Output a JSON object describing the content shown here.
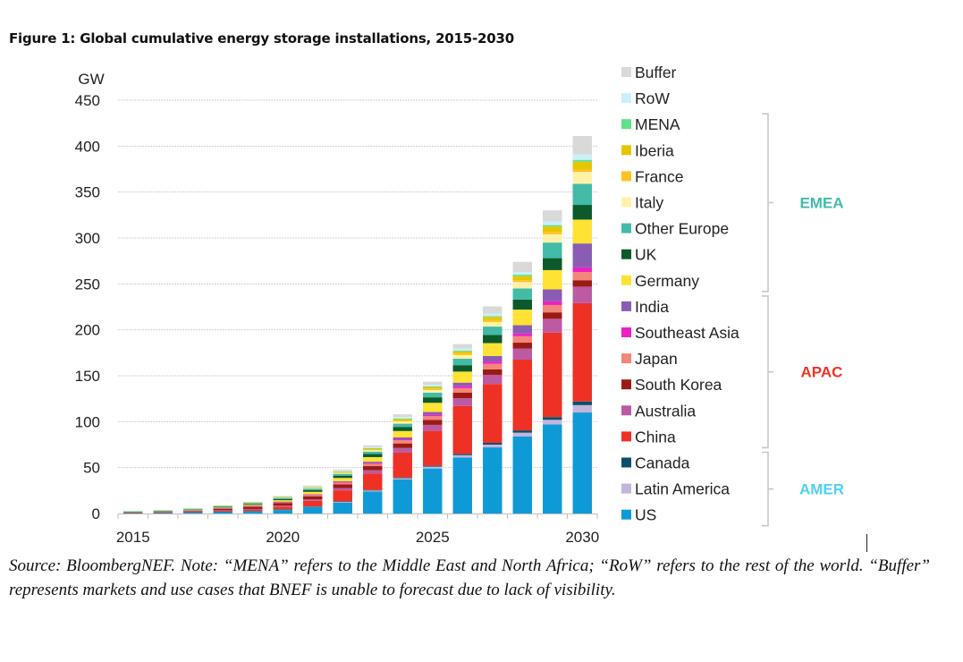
{
  "figure": {
    "title": "Figure 1: Global cumulative energy storage installations, 2015-2030",
    "source_note": "Source: BloombergNEF. Note: “MENA” refers to the Middle East and North Africa; “RoW” refers to the rest of the world. “Buffer” represents markets and use cases that BNEF is unable to forecast due to lack of visibility."
  },
  "chart_data": {
    "type": "bar",
    "stacked": true,
    "title": "Global cumulative energy storage installations, 2015-2030",
    "xlabel": "",
    "ylabel": "GW",
    "ylim": [
      0,
      450
    ],
    "yticks": [
      0,
      50,
      100,
      150,
      200,
      250,
      300,
      350,
      400,
      450
    ],
    "xtick_labels": [
      "2015",
      "2020",
      "2025",
      "2030"
    ],
    "grid": true,
    "legend_position": "right",
    "categories": [
      "2015",
      "2016",
      "2017",
      "2018",
      "2019",
      "2020",
      "2021",
      "2022",
      "2023",
      "2024",
      "2025",
      "2026",
      "2027",
      "2028",
      "2029",
      "2030"
    ],
    "series": [
      {
        "name": "US",
        "color": "#0e9ad7",
        "values": [
          0.5,
          0.8,
          1.2,
          1.8,
          2.5,
          4,
          7,
          12,
          24,
          37,
          49,
          61,
          72,
          84,
          97,
          110
        ]
      },
      {
        "name": "Latin America",
        "color": "#c4b5dd",
        "values": [
          0.1,
          0.1,
          0.1,
          0.2,
          0.2,
          0.3,
          0.5,
          0.8,
          1,
          1.5,
          2,
          2.5,
          3,
          4,
          5,
          8
        ]
      },
      {
        "name": "Canada",
        "color": "#0b4f6c",
        "values": [
          0.1,
          0.1,
          0.1,
          0.1,
          0.1,
          0.2,
          0.3,
          0.4,
          0.6,
          0.8,
          1,
          1.5,
          2,
          2.5,
          3,
          4
        ]
      },
      {
        "name": "China",
        "color": "#ee3124",
        "values": [
          0.2,
          0.3,
          0.5,
          1,
          1.5,
          3,
          6,
          12,
          18,
          27,
          38,
          52,
          64,
          77,
          92,
          107
        ]
      },
      {
        "name": "Australia",
        "color": "#bc5aa3",
        "values": [
          0.1,
          0.1,
          0.2,
          0.4,
          0.6,
          1,
          1.5,
          2.5,
          3.5,
          5,
          6.5,
          8.5,
          10,
          12,
          15,
          18
        ]
      },
      {
        "name": "South Korea",
        "color": "#9b1b14",
        "values": [
          0.2,
          0.4,
          0.7,
          1.5,
          2.5,
          3,
          3.5,
          4,
          4.5,
          5,
          5.5,
          6,
          6,
          6.5,
          7,
          7
        ]
      },
      {
        "name": "Japan",
        "color": "#f4857a",
        "values": [
          0.2,
          0.3,
          0.4,
          0.6,
          0.8,
          1,
          1.5,
          2,
          2.5,
          3.5,
          4,
          5,
          6,
          7,
          8,
          9
        ]
      },
      {
        "name": "Southeast Asia",
        "color": "#ee1fc4",
        "values": [
          0,
          0,
          0,
          0.1,
          0.1,
          0.2,
          0.3,
          0.5,
          0.8,
          1,
          1.5,
          2,
          2.5,
          3,
          4,
          5
        ]
      },
      {
        "name": "India",
        "color": "#8a5cb4",
        "values": [
          0,
          0,
          0.1,
          0.1,
          0.2,
          0.3,
          0.5,
          1,
          1.5,
          2,
          3,
          4,
          6,
          9,
          13,
          26
        ]
      },
      {
        "name": "Germany",
        "color": "#ffe234",
        "values": [
          0.1,
          0.2,
          0.4,
          0.7,
          1,
          1.5,
          2.5,
          3.5,
          5,
          7,
          10,
          12,
          14,
          17,
          21,
          26
        ]
      },
      {
        "name": "UK",
        "color": "#0c5a2b",
        "values": [
          0.2,
          0.3,
          0.5,
          0.7,
          1,
          1.3,
          2,
          2.5,
          3.5,
          4.5,
          6,
          7,
          9,
          11,
          13,
          16
        ]
      },
      {
        "name": "Other Europe",
        "color": "#42bba9",
        "values": [
          0.9,
          0.9,
          1,
          1,
          1,
          1.2,
          1.5,
          2,
          2.5,
          3.5,
          5,
          7,
          9,
          12,
          17,
          23
        ]
      },
      {
        "name": "Italy",
        "color": "#fff2a8",
        "values": [
          0.1,
          0.1,
          0.1,
          0.2,
          0.2,
          0.4,
          0.6,
          1,
          1.5,
          2.5,
          3,
          4,
          5,
          7,
          9,
          13
        ]
      },
      {
        "name": "France",
        "color": "#ffc222",
        "values": [
          0.1,
          0.1,
          0.1,
          0.2,
          0.2,
          0.3,
          0.4,
          0.5,
          0.7,
          1,
          1.2,
          1.5,
          2,
          2,
          2.5,
          3
        ]
      },
      {
        "name": "Iberia",
        "color": "#e6c600",
        "values": [
          0,
          0,
          0.1,
          0.1,
          0.2,
          0.3,
          0.5,
          0.8,
          1,
          1.5,
          2,
          2.5,
          3.5,
          4.5,
          6,
          8
        ]
      },
      {
        "name": "MENA",
        "color": "#5fe08a",
        "values": [
          0.1,
          0.1,
          0.2,
          0.2,
          0.3,
          0.3,
          0.4,
          0.5,
          0.6,
          0.7,
          0.8,
          1,
          1,
          1.5,
          1.5,
          2
        ]
      },
      {
        "name": "RoW",
        "color": "#c9f0fb",
        "values": [
          0.1,
          0.1,
          0.1,
          0.2,
          0.2,
          0.4,
          0.5,
          0.7,
          1,
          1.5,
          1.5,
          2,
          2.5,
          3,
          4,
          6
        ]
      },
      {
        "name": "Buffer",
        "color": "#d9d9d9",
        "values": [
          0,
          0,
          0,
          0,
          0.2,
          0.5,
          1,
          1.3,
          2,
          3,
          3.5,
          5,
          8,
          11,
          12,
          20
        ]
      }
    ],
    "legend_order": [
      "Buffer",
      "RoW",
      "MENA",
      "Iberia",
      "France",
      "Italy",
      "Other Europe",
      "UK",
      "Germany",
      "India",
      "Southeast Asia",
      "Japan",
      "South Korea",
      "Australia",
      "China",
      "Canada",
      "Latin America",
      "US"
    ],
    "region_groups": [
      {
        "name": "EMEA",
        "color": "#42bba9",
        "members": [
          "MENA",
          "Iberia",
          "France",
          "Italy",
          "Other Europe",
          "UK",
          "Germany"
        ]
      },
      {
        "name": "APAC",
        "color": "#ee3124",
        "members": [
          "India",
          "Southeast Asia",
          "Japan",
          "South Korea",
          "Australia",
          "China"
        ]
      },
      {
        "name": "AMER",
        "color": "#4fd0f5",
        "members": [
          "Canada",
          "Latin America",
          "US"
        ]
      }
    ]
  }
}
